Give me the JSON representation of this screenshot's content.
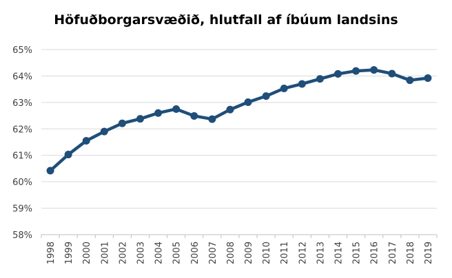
{
  "chart_data": {
    "type": "line",
    "title": "Höfuðborgarsvæðið, hlutfall af íbúum landsins",
    "xlabel": "",
    "ylabel": "",
    "categories": [
      "1998",
      "1999",
      "2000",
      "2001",
      "2002",
      "2003",
      "2004",
      "2005",
      "2006",
      "2007",
      "2008",
      "2009",
      "2010",
      "2011",
      "2012",
      "2013",
      "2014",
      "2015",
      "2016",
      "2017",
      "2018",
      "2019"
    ],
    "series": [
      {
        "values": [
          60.42,
          61.03,
          61.55,
          61.9,
          62.21,
          62.38,
          62.6,
          62.75,
          62.49,
          62.37,
          62.73,
          63.01,
          63.24,
          63.53,
          63.7,
          63.89,
          64.08,
          64.19,
          64.23,
          64.09,
          63.84,
          63.92
        ],
        "color": "#1f4e79"
      }
    ],
    "ylim": [
      58,
      65
    ],
    "yticks": [
      "58%",
      "59%",
      "60%",
      "61%",
      "62%",
      "63%",
      "64%",
      "65%"
    ],
    "grid": true,
    "legend": "none",
    "colors": {
      "line": "#1f4e79",
      "grid": "#d9d9d9",
      "axis": "#bfbfbf"
    }
  }
}
